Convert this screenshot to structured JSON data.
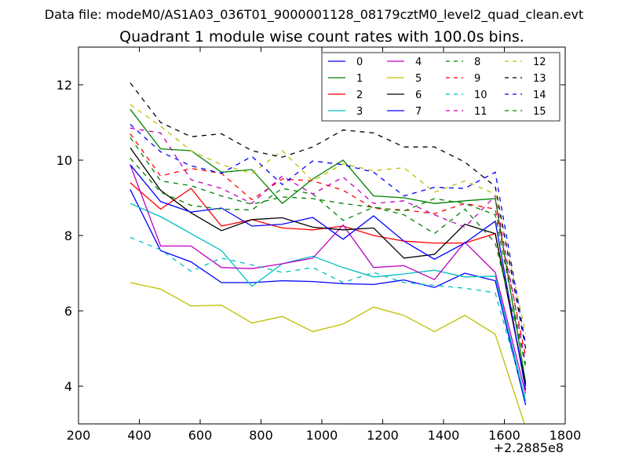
{
  "header": {
    "data_file_label": "Data file: modeM0/AS1A03_036T01_9000001128_08179cztM0_level2_quad_clean.evt"
  },
  "chart_data": {
    "type": "line",
    "title": "Quadrant 1 module wise count rates with 100.0s bins.",
    "xlabel": "",
    "ylabel": "",
    "xlim": [
      200,
      1800
    ],
    "ylim": [
      3,
      13
    ],
    "xticks": [
      200,
      400,
      600,
      800,
      1000,
      1200,
      1400,
      1600,
      1800
    ],
    "yticks": [
      4,
      6,
      8,
      10,
      12
    ],
    "xtick_labels": [
      "200",
      "400",
      "600",
      "800",
      "1000",
      "1200",
      "1400",
      "1600",
      "1800"
    ],
    "ytick_labels": [
      "4",
      "6",
      "8",
      "10",
      "12"
    ],
    "x_offset_label": "+2.2885e8",
    "grid": false,
    "legend_position": "top-right",
    "x": [
      370,
      470,
      570,
      670,
      770,
      870,
      970,
      1070,
      1170,
      1270,
      1370,
      1470,
      1570,
      1670
    ],
    "series": [
      {
        "name": "0",
        "color": "#0000ff",
        "dash": "solid",
        "values": [
          9.22,
          7.6,
          7.3,
          6.75,
          6.75,
          6.8,
          6.78,
          6.72,
          6.7,
          6.82,
          6.62,
          7.0,
          6.8,
          3.5
        ]
      },
      {
        "name": "1",
        "color": "#008000",
        "dash": "solid",
        "values": [
          11.35,
          10.3,
          10.25,
          9.68,
          9.75,
          8.85,
          9.5,
          10.0,
          9.05,
          9.0,
          8.85,
          8.92,
          8.98,
          4.1
        ]
      },
      {
        "name": "2",
        "color": "#ff0000",
        "dash": "solid",
        "values": [
          9.4,
          8.7,
          9.25,
          8.25,
          8.42,
          8.2,
          8.15,
          8.25,
          8.0,
          7.85,
          7.8,
          7.8,
          8.05,
          4.0
        ]
      },
      {
        "name": "3",
        "color": "#00bfbf",
        "dash": "solid",
        "values": [
          8.85,
          8.5,
          8.05,
          7.6,
          6.65,
          7.25,
          7.45,
          7.15,
          6.9,
          6.98,
          7.08,
          6.9,
          6.92,
          3.6
        ]
      },
      {
        "name": "4",
        "color": "#bf00bf",
        "dash": "solid",
        "values": [
          9.88,
          7.72,
          7.72,
          7.15,
          7.12,
          7.25,
          7.4,
          8.28,
          7.15,
          7.2,
          6.83,
          7.82,
          7.02,
          3.8
        ]
      },
      {
        "name": "5",
        "color": "#bfbf00",
        "dash": "solid",
        "values": [
          6.75,
          6.58,
          6.13,
          6.15,
          5.68,
          5.85,
          5.45,
          5.65,
          6.1,
          5.88,
          5.45,
          5.88,
          5.38,
          2.9
        ]
      },
      {
        "name": "6",
        "color": "#000000",
        "dash": "solid",
        "values": [
          10.33,
          9.2,
          8.6,
          8.13,
          8.42,
          8.47,
          8.22,
          8.15,
          8.2,
          7.4,
          7.5,
          8.3,
          8.05,
          4.05
        ]
      },
      {
        "name": "7",
        "color": "#0000ff",
        "dash": "solid",
        "values": [
          9.88,
          8.9,
          8.62,
          8.73,
          8.25,
          8.3,
          8.48,
          7.9,
          8.52,
          7.85,
          7.37,
          7.8,
          8.38,
          3.9
        ]
      },
      {
        "name": "8",
        "color": "#008000",
        "dash": "dashed",
        "values": [
          10.05,
          9.15,
          8.8,
          8.7,
          8.68,
          9.25,
          9.1,
          8.4,
          8.75,
          8.55,
          8.05,
          8.7,
          7.8,
          4.6
        ]
      },
      {
        "name": "9",
        "color": "#ff0000",
        "dash": "dashed",
        "values": [
          10.7,
          9.58,
          9.78,
          9.65,
          8.95,
          9.5,
          9.45,
          9.2,
          8.72,
          8.68,
          8.58,
          8.85,
          8.7,
          4.8
        ]
      },
      {
        "name": "10",
        "color": "#00bfbf",
        "dash": "dashed",
        "values": [
          7.95,
          7.62,
          7.05,
          7.4,
          7.22,
          7.02,
          7.15,
          6.75,
          7.02,
          6.75,
          6.68,
          6.6,
          6.48,
          3.65
        ]
      },
      {
        "name": "11",
        "color": "#bf00bf",
        "dash": "dashed",
        "values": [
          10.85,
          10.72,
          9.48,
          9.25,
          8.85,
          9.58,
          9.1,
          9.55,
          8.85,
          8.92,
          8.55,
          8.22,
          9.05,
          4.6
        ]
      },
      {
        "name": "12",
        "color": "#bfbf00",
        "dash": "dashed",
        "values": [
          11.48,
          10.9,
          10.25,
          9.88,
          9.65,
          10.25,
          9.45,
          9.9,
          9.72,
          9.8,
          9.15,
          9.45,
          9.1,
          5.4
        ]
      },
      {
        "name": "13",
        "color": "#000000",
        "dash": "dashed",
        "values": [
          12.05,
          11.0,
          10.62,
          10.7,
          10.25,
          10.08,
          10.35,
          10.8,
          10.72,
          10.35,
          10.35,
          9.95,
          9.3,
          5.0
        ]
      },
      {
        "name": "14",
        "color": "#0000ff",
        "dash": "dashed",
        "values": [
          10.95,
          10.22,
          9.85,
          9.65,
          10.1,
          9.35,
          9.98,
          9.88,
          9.68,
          9.05,
          9.28,
          9.25,
          9.68,
          5.1
        ]
      },
      {
        "name": "15",
        "color": "#008000",
        "dash": "dashed",
        "values": [
          10.6,
          9.45,
          9.32,
          9.05,
          8.83,
          9.02,
          8.98,
          8.85,
          8.75,
          8.65,
          8.98,
          8.85,
          8.55,
          4.5
        ]
      }
    ]
  }
}
